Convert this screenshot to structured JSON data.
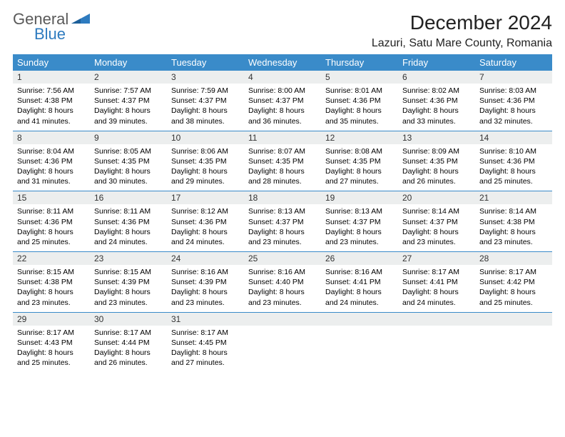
{
  "brand": {
    "general": "General",
    "blue": "Blue"
  },
  "title": "December 2024",
  "location": "Lazuri, Satu Mare County, Romania",
  "colors": {
    "header_bg": "#3a8bc9",
    "header_text": "#ffffff",
    "daynum_bg": "#eceeee",
    "border": "#3a8bc9",
    "logo_blue": "#2e7bbf",
    "logo_gray": "#5a5a5a"
  },
  "weekdays": [
    "Sunday",
    "Monday",
    "Tuesday",
    "Wednesday",
    "Thursday",
    "Friday",
    "Saturday"
  ],
  "weeks": [
    [
      {
        "n": "1",
        "sr": "7:56 AM",
        "ss": "4:38 PM",
        "dl": "8 hours and 41 minutes."
      },
      {
        "n": "2",
        "sr": "7:57 AM",
        "ss": "4:37 PM",
        "dl": "8 hours and 39 minutes."
      },
      {
        "n": "3",
        "sr": "7:59 AM",
        "ss": "4:37 PM",
        "dl": "8 hours and 38 minutes."
      },
      {
        "n": "4",
        "sr": "8:00 AM",
        "ss": "4:37 PM",
        "dl": "8 hours and 36 minutes."
      },
      {
        "n": "5",
        "sr": "8:01 AM",
        "ss": "4:36 PM",
        "dl": "8 hours and 35 minutes."
      },
      {
        "n": "6",
        "sr": "8:02 AM",
        "ss": "4:36 PM",
        "dl": "8 hours and 33 minutes."
      },
      {
        "n": "7",
        "sr": "8:03 AM",
        "ss": "4:36 PM",
        "dl": "8 hours and 32 minutes."
      }
    ],
    [
      {
        "n": "8",
        "sr": "8:04 AM",
        "ss": "4:36 PM",
        "dl": "8 hours and 31 minutes."
      },
      {
        "n": "9",
        "sr": "8:05 AM",
        "ss": "4:35 PM",
        "dl": "8 hours and 30 minutes."
      },
      {
        "n": "10",
        "sr": "8:06 AM",
        "ss": "4:35 PM",
        "dl": "8 hours and 29 minutes."
      },
      {
        "n": "11",
        "sr": "8:07 AM",
        "ss": "4:35 PM",
        "dl": "8 hours and 28 minutes."
      },
      {
        "n": "12",
        "sr": "8:08 AM",
        "ss": "4:35 PM",
        "dl": "8 hours and 27 minutes."
      },
      {
        "n": "13",
        "sr": "8:09 AM",
        "ss": "4:35 PM",
        "dl": "8 hours and 26 minutes."
      },
      {
        "n": "14",
        "sr": "8:10 AM",
        "ss": "4:36 PM",
        "dl": "8 hours and 25 minutes."
      }
    ],
    [
      {
        "n": "15",
        "sr": "8:11 AM",
        "ss": "4:36 PM",
        "dl": "8 hours and 25 minutes."
      },
      {
        "n": "16",
        "sr": "8:11 AM",
        "ss": "4:36 PM",
        "dl": "8 hours and 24 minutes."
      },
      {
        "n": "17",
        "sr": "8:12 AM",
        "ss": "4:36 PM",
        "dl": "8 hours and 24 minutes."
      },
      {
        "n": "18",
        "sr": "8:13 AM",
        "ss": "4:37 PM",
        "dl": "8 hours and 23 minutes."
      },
      {
        "n": "19",
        "sr": "8:13 AM",
        "ss": "4:37 PM",
        "dl": "8 hours and 23 minutes."
      },
      {
        "n": "20",
        "sr": "8:14 AM",
        "ss": "4:37 PM",
        "dl": "8 hours and 23 minutes."
      },
      {
        "n": "21",
        "sr": "8:14 AM",
        "ss": "4:38 PM",
        "dl": "8 hours and 23 minutes."
      }
    ],
    [
      {
        "n": "22",
        "sr": "8:15 AM",
        "ss": "4:38 PM",
        "dl": "8 hours and 23 minutes."
      },
      {
        "n": "23",
        "sr": "8:15 AM",
        "ss": "4:39 PM",
        "dl": "8 hours and 23 minutes."
      },
      {
        "n": "24",
        "sr": "8:16 AM",
        "ss": "4:39 PM",
        "dl": "8 hours and 23 minutes."
      },
      {
        "n": "25",
        "sr": "8:16 AM",
        "ss": "4:40 PM",
        "dl": "8 hours and 23 minutes."
      },
      {
        "n": "26",
        "sr": "8:16 AM",
        "ss": "4:41 PM",
        "dl": "8 hours and 24 minutes."
      },
      {
        "n": "27",
        "sr": "8:17 AM",
        "ss": "4:41 PM",
        "dl": "8 hours and 24 minutes."
      },
      {
        "n": "28",
        "sr": "8:17 AM",
        "ss": "4:42 PM",
        "dl": "8 hours and 25 minutes."
      }
    ],
    [
      {
        "n": "29",
        "sr": "8:17 AM",
        "ss": "4:43 PM",
        "dl": "8 hours and 25 minutes."
      },
      {
        "n": "30",
        "sr": "8:17 AM",
        "ss": "4:44 PM",
        "dl": "8 hours and 26 minutes."
      },
      {
        "n": "31",
        "sr": "8:17 AM",
        "ss": "4:45 PM",
        "dl": "8 hours and 27 minutes."
      },
      null,
      null,
      null,
      null
    ]
  ],
  "labels": {
    "sunrise": "Sunrise: ",
    "sunset": "Sunset: ",
    "daylight": "Daylight: "
  }
}
